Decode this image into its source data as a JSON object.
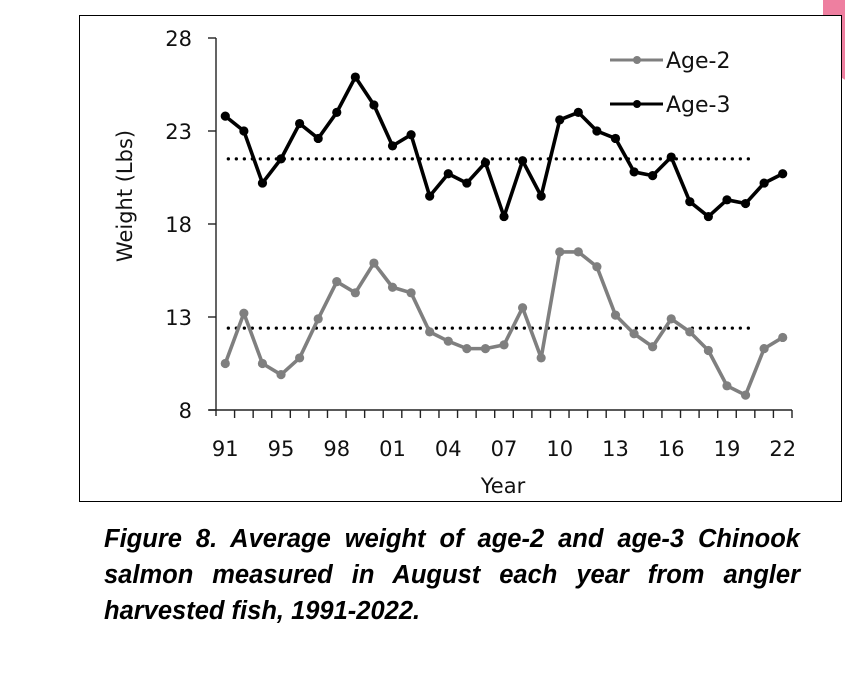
{
  "chart_data": {
    "type": "line",
    "title": "",
    "xlabel": "Year",
    "ylabel": "Weight (Lbs)",
    "ylim": [
      8,
      28
    ],
    "yticks": [
      8,
      13,
      18,
      23,
      28
    ],
    "x_tick_labels": [
      "91",
      "95",
      "98",
      "01",
      "04",
      "07",
      "10",
      "13",
      "16",
      "19",
      "22"
    ],
    "legend": {
      "placement": "top-right",
      "entries": [
        "Age-2",
        "Age-3"
      ]
    },
    "grid": false,
    "x": [
      "1991",
      "1993",
      "1994",
      "1995",
      "1996",
      "1997",
      "1998",
      "1999",
      "2000",
      "2001",
      "2002",
      "2003",
      "2004",
      "2005",
      "2006",
      "2007",
      "2008",
      "2009",
      "2010",
      "2011",
      "2012",
      "2013",
      "2014",
      "2015",
      "2016",
      "2017",
      "2018",
      "2019",
      "2020",
      "2021",
      "2022"
    ],
    "series": [
      {
        "name": "Age-2",
        "color": "#7f7f7f",
        "mean": 12.4,
        "values": [
          10.5,
          13.2,
          10.5,
          9.9,
          10.8,
          12.9,
          14.9,
          14.3,
          15.9,
          14.6,
          14.3,
          12.2,
          11.7,
          11.3,
          11.3,
          11.5,
          13.5,
          10.8,
          16.5,
          16.5,
          15.7,
          13.1,
          12.1,
          11.4,
          12.9,
          12.2,
          11.2,
          9.3,
          8.8,
          11.3,
          11.9
        ]
      },
      {
        "name": "Age-3",
        "color": "#000000",
        "mean": 21.5,
        "values": [
          23.8,
          23.0,
          20.2,
          21.5,
          23.4,
          22.6,
          24.0,
          25.9,
          24.4,
          22.2,
          22.8,
          19.5,
          20.7,
          20.2,
          21.3,
          18.4,
          21.4,
          19.5,
          23.6,
          24.0,
          23.0,
          22.6,
          20.8,
          20.6,
          21.6,
          19.2,
          18.4,
          19.3,
          19.1,
          20.2,
          20.7
        ]
      }
    ]
  },
  "caption": "Figure 8.  Average weight of age-2 and age-3 Chinook salmon measured in August each year from angler harvested fish, 1991-2022."
}
